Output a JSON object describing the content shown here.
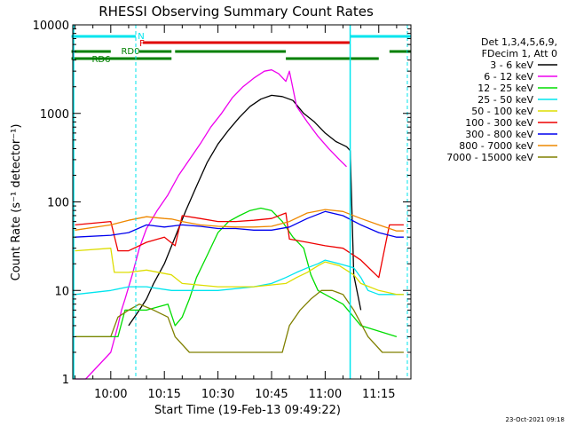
{
  "chart_data": {
    "type": "line",
    "title": "RHESSI Observing Summary Count Rates",
    "xlabel": "Start Time (19-Feb-13 09:49:22)",
    "ylabel": "Count Rate (s⁻¹ detector⁻¹)",
    "yscale": "log",
    "ylim": [
      1,
      10000
    ],
    "xlim": [
      "09:49:22",
      "11:24:00"
    ],
    "x_tick_labels": [
      "10:00",
      "10:15",
      "10:30",
      "10:45",
      "11:00",
      "11:15"
    ],
    "y_tick_labels": [
      "1",
      "10",
      "100",
      "1000",
      "10000"
    ],
    "grid": false,
    "legend_position": "right",
    "legend_header": [
      "Det 1,3,4,5,6,9,",
      "FDecim 1, Att 0"
    ],
    "footer": "23-Oct-2021 09:18",
    "flag_labels": {
      "N": "N",
      "F": "F",
      "RD0": "RD0",
      "RD6": "RD6"
    },
    "flags": {
      "N": {
        "color": "#00e5ee",
        "intervals": [
          [
            "09:49",
            "10:07"
          ],
          [
            "11:07",
            "11:24"
          ]
        ]
      },
      "F": {
        "color": "#e00000",
        "intervals": [
          [
            "10:09",
            "11:07"
          ]
        ]
      },
      "RD0": {
        "color": "#008000",
        "intervals": [
          [
            "09:49",
            "10:00"
          ],
          [
            "10:08",
            "10:17"
          ],
          [
            "10:18",
            "10:49"
          ],
          [
            "11:18",
            "11:24"
          ]
        ]
      },
      "RD6": {
        "color": "#008000",
        "intervals": [
          [
            "09:49",
            "10:17"
          ],
          [
            "10:49",
            "11:15"
          ]
        ]
      }
    },
    "vlines": [
      "10:07",
      "11:23"
    ],
    "solid_vlines": [
      "09:48",
      "11:07"
    ],
    "series": [
      {
        "name": "3 - 6 keV",
        "color": "#000000",
        "x": [
          "10:05",
          "10:08",
          "10:10",
          "10:12",
          "10:15",
          "10:18",
          "10:21",
          "10:24",
          "10:27",
          "10:30",
          "10:33",
          "10:36",
          "10:39",
          "10:42",
          "10:45",
          "10:48",
          "10:51",
          "10:54",
          "10:57",
          "11:00",
          "11:03",
          "11:06",
          "11:07",
          "11:08",
          "11:10"
        ],
        "y": [
          4,
          6,
          8,
          12,
          20,
          40,
          80,
          150,
          280,
          450,
          650,
          900,
          1200,
          1450,
          1600,
          1550,
          1400,
          1000,
          800,
          600,
          480,
          420,
          380,
          15,
          6
        ]
      },
      {
        "name": "6 - 12 keV",
        "color": "#ee00ee",
        "x": [
          "09:50",
          "09:53",
          "10:00",
          "10:02",
          "10:03",
          "10:04",
          "10:06",
          "10:08",
          "10:10",
          "10:13",
          "10:16",
          "10:19",
          "10:22",
          "10:25",
          "10:28",
          "10:31",
          "10:34",
          "10:37",
          "10:40",
          "10:43",
          "10:45",
          "10:47",
          "10:49",
          "10:50",
          "10:52",
          "10:55",
          "10:58",
          "11:01",
          "11:04",
          "11:06"
        ],
        "y": [
          1,
          1,
          2,
          4,
          6,
          8,
          15,
          30,
          50,
          80,
          120,
          200,
          300,
          450,
          700,
          1000,
          1500,
          2000,
          2500,
          3000,
          3100,
          2800,
          2300,
          3000,
          1200,
          800,
          550,
          400,
          300,
          250
        ]
      },
      {
        "name": "12 - 25 keV",
        "color": "#00dd00",
        "x": [
          "09:50",
          "10:02",
          "10:04",
          "10:10",
          "10:16",
          "10:18",
          "10:20",
          "10:22",
          "10:24",
          "10:27",
          "10:30",
          "10:33",
          "10:36",
          "10:39",
          "10:42",
          "10:45",
          "10:48",
          "10:51",
          "10:54",
          "10:56",
          "10:58",
          "11:00",
          "11:05",
          "11:10",
          "11:20"
        ],
        "y": [
          3,
          3,
          6,
          6,
          7,
          4,
          5,
          8,
          14,
          25,
          45,
          60,
          70,
          80,
          85,
          80,
          60,
          40,
          30,
          15,
          10,
          9,
          7,
          4,
          3
        ]
      },
      {
        "name": "25 - 50 keV",
        "color": "#00e5ee",
        "x": [
          "09:50",
          "10:00",
          "10:05",
          "10:10",
          "10:17",
          "10:20",
          "10:30",
          "10:40",
          "10:45",
          "10:49",
          "10:52",
          "10:55",
          "10:58",
          "11:00",
          "11:04",
          "11:08",
          "11:10",
          "11:12",
          "11:15",
          "11:18",
          "11:22"
        ],
        "y": [
          9,
          10,
          11,
          11,
          10,
          10,
          10,
          11,
          12,
          14,
          16,
          18,
          20,
          22,
          20,
          18,
          14,
          10,
          9,
          9,
          9
        ]
      },
      {
        "name": "50 - 100 keV",
        "color": "#dddd00",
        "x": [
          "09:50",
          "10:00",
          "10:01",
          "10:05",
          "10:10",
          "10:17",
          "10:20",
          "10:30",
          "10:40",
          "10:49",
          "10:52",
          "10:55",
          "10:58",
          "11:00",
          "11:04",
          "11:08",
          "11:10",
          "11:15",
          "11:20",
          "11:22"
        ],
        "y": [
          28,
          30,
          16,
          16,
          17,
          15,
          12,
          11,
          11,
          12,
          14,
          16,
          19,
          21,
          19,
          15,
          12,
          10,
          9,
          9
        ]
      },
      {
        "name": "100 - 300 keV",
        "color": "#ee0000",
        "x": [
          "09:50",
          "10:00",
          "10:02",
          "10:05",
          "10:10",
          "10:15",
          "10:18",
          "10:20",
          "10:25",
          "10:30",
          "10:35",
          "10:40",
          "10:45",
          "10:49",
          "10:50",
          "10:55",
          "11:00",
          "11:05",
          "11:10",
          "11:15",
          "11:18",
          "11:22"
        ],
        "y": [
          55,
          60,
          28,
          28,
          35,
          40,
          32,
          70,
          65,
          60,
          60,
          62,
          65,
          75,
          38,
          35,
          32,
          30,
          22,
          14,
          55,
          55
        ]
      },
      {
        "name": "300 - 800 keV",
        "color": "#0000ee",
        "x": [
          "09:50",
          "10:00",
          "10:05",
          "10:10",
          "10:15",
          "10:20",
          "10:25",
          "10:30",
          "10:35",
          "10:40",
          "10:45",
          "10:50",
          "10:55",
          "11:00",
          "11:05",
          "11:10",
          "11:15",
          "11:20",
          "11:22"
        ],
        "y": [
          40,
          42,
          45,
          55,
          52,
          55,
          53,
          50,
          50,
          48,
          48,
          52,
          65,
          78,
          70,
          55,
          45,
          40,
          40
        ]
      },
      {
        "name": "800 - 7000 keV",
        "color": "#ee8800",
        "x": [
          "09:50",
          "10:00",
          "10:05",
          "10:10",
          "10:15",
          "10:17",
          "10:20",
          "10:25",
          "10:30",
          "10:35",
          "10:40",
          "10:45",
          "10:50",
          "10:55",
          "11:00",
          "11:05",
          "11:10",
          "11:15",
          "11:20",
          "11:22"
        ],
        "y": [
          48,
          55,
          62,
          68,
          65,
          64,
          60,
          55,
          53,
          52,
          52,
          53,
          60,
          75,
          82,
          78,
          65,
          55,
          47,
          47
        ]
      },
      {
        "name": "7000 - 15000 keV",
        "color": "#808000",
        "x": [
          "09:50",
          "10:00",
          "10:02",
          "10:05",
          "10:08",
          "10:12",
          "10:16",
          "10:18",
          "10:22",
          "10:30",
          "10:40",
          "10:48",
          "10:50",
          "10:53",
          "10:56",
          "10:59",
          "11:02",
          "11:05",
          "11:08",
          "11:12",
          "11:16",
          "11:22"
        ],
        "y": [
          3,
          3,
          5,
          6,
          7,
          6,
          5,
          3,
          2,
          2,
          2,
          2,
          4,
          6,
          8,
          10,
          10,
          9,
          6,
          3,
          2,
          2
        ]
      }
    ]
  }
}
